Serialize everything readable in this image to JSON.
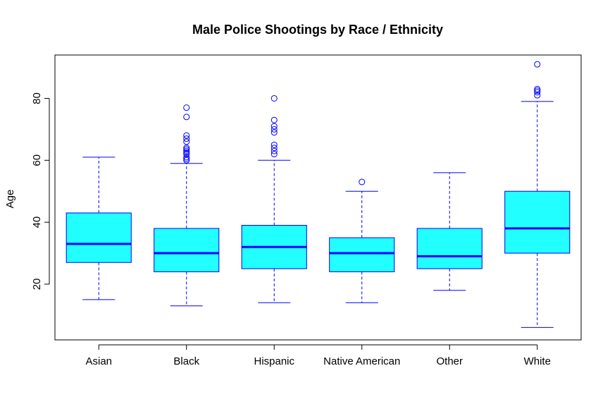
{
  "chart_data": {
    "type": "boxplot",
    "title": "Male Police Shootings by Race / Ethnicity",
    "xlabel": "",
    "ylabel": "Age",
    "ylim": [
      2,
      94
    ],
    "yticks": [
      20,
      40,
      60,
      80
    ],
    "grid": false,
    "categories": [
      "Asian",
      "Black",
      "Hispanic",
      "Native American",
      "Other",
      "White"
    ],
    "boxes": [
      {
        "name": "Asian",
        "whisker_low": 15,
        "q1": 27,
        "median": 33,
        "q3": 43,
        "whisker_high": 61,
        "outliers": []
      },
      {
        "name": "Black",
        "whisker_low": 13,
        "q1": 24,
        "median": 30,
        "q3": 38,
        "whisker_high": 59,
        "outliers": [
          60,
          60.5,
          61,
          62,
          62.5,
          63,
          63.5,
          64,
          66,
          67,
          68,
          74,
          77
        ]
      },
      {
        "name": "Hispanic",
        "whisker_low": 14,
        "q1": 25,
        "median": 32,
        "q3": 39,
        "whisker_high": 60,
        "outliers": [
          62,
          63,
          64,
          65,
          69,
          70,
          71,
          73,
          80
        ]
      },
      {
        "name": "Native American",
        "whisker_low": 14,
        "q1": 24,
        "median": 30,
        "q3": 35,
        "whisker_high": 50,
        "outliers": [
          53
        ]
      },
      {
        "name": "Other",
        "whisker_low": 18,
        "q1": 25,
        "median": 29,
        "q3": 38,
        "whisker_high": 56,
        "outliers": []
      },
      {
        "name": "White",
        "whisker_low": 6,
        "q1": 30,
        "median": 38,
        "q3": 50,
        "whisker_high": 79,
        "outliers": [
          81,
          82,
          82.5,
          83,
          91
        ]
      }
    ],
    "colors": {
      "box_fill": "#22ffff",
      "box_border": "#0000ff",
      "median": "#0000ff",
      "whisker": "#0000ff",
      "outlier": "#0000ff",
      "axis": "#000000"
    }
  }
}
